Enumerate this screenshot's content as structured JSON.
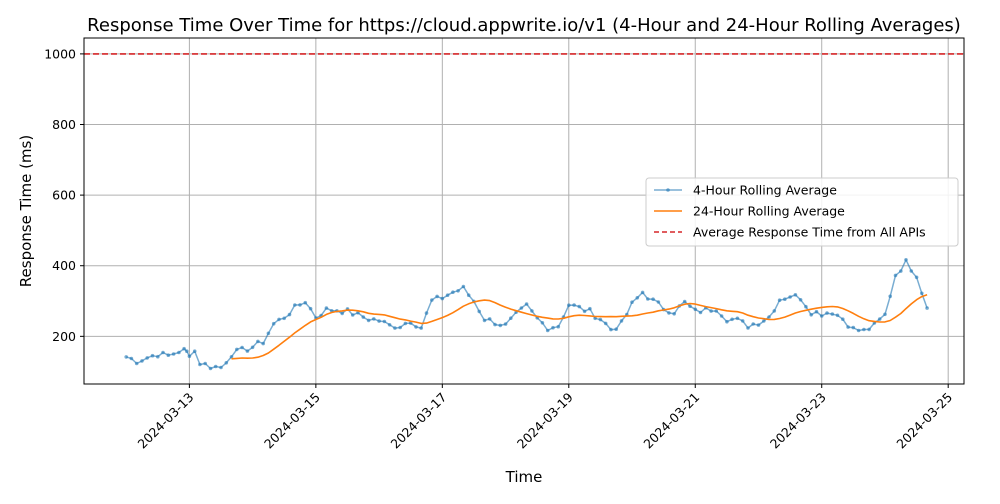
{
  "chart_data": {
    "type": "line",
    "title": "Response Time Over Time for https://cloud.appwrite.io/v1 (4-Hour and 24-Hour Rolling Averages)",
    "xlabel": "Time",
    "ylabel": "Response Time (ms)",
    "grid": true,
    "legend_position": "center-right",
    "xlim": [
      "2024-03-11T08:00",
      "2024-03-25T06:00"
    ],
    "ylim": [
      65,
      1045
    ],
    "x_ticks": [
      "2024-03-13",
      "2024-03-15",
      "2024-03-17",
      "2024-03-19",
      "2024-03-21",
      "2024-03-23",
      "2024-03-25"
    ],
    "y_ticks": [
      200,
      400,
      600,
      800,
      1000
    ],
    "reference_line": {
      "label": "Average Response Time from All APIs",
      "y": 1000,
      "color": "#d62728",
      "style": "dashed"
    },
    "series": [
      {
        "name": "4-Hour Rolling Average",
        "color": "#1f77b4",
        "alpha": 0.6,
        "marker": "dot",
        "points": [
          [
            "2024-03-12T00:00",
            142
          ],
          [
            "2024-03-12T04:00",
            130
          ],
          [
            "2024-03-12T08:00",
            140
          ],
          [
            "2024-03-12T12:00",
            150
          ],
          [
            "2024-03-12T16:00",
            145
          ],
          [
            "2024-03-12T20:00",
            158
          ],
          [
            "2024-03-13T00:00",
            162
          ],
          [
            "2024-03-12T22:00",
            160
          ],
          [
            "2024-03-13T02:00",
            158
          ],
          [
            "2024-03-12T23:00",
            155
          ],
          [
            "2024-03-13T00:00",
            140
          ],
          [
            "2024-03-13T04:00",
            125
          ],
          [
            "2024-03-13T08:00",
            115
          ],
          [
            "2024-03-13T12:00",
            112
          ],
          [
            "2024-03-13T16:00",
            150
          ],
          [
            "2024-03-13T20:00",
            160
          ],
          [
            "2024-03-14T00:00",
            170
          ],
          [
            "2024-03-14T04:00",
            185
          ],
          [
            "2024-03-14T08:00",
            235
          ],
          [
            "2024-03-14T12:00",
            255
          ],
          [
            "2024-03-14T16:00",
            280
          ],
          [
            "2024-03-14T20:00",
            300
          ],
          [
            "2024-03-15T00:00",
            255
          ],
          [
            "2024-03-15T04:00",
            275
          ],
          [
            "2024-03-15T08:00",
            275
          ],
          [
            "2024-03-15T12:00",
            270
          ],
          [
            "2024-03-15T16:00",
            260
          ],
          [
            "2024-03-15T20:00",
            250
          ],
          [
            "2024-03-16T00:00",
            245
          ],
          [
            "2024-03-16T04:00",
            230
          ],
          [
            "2024-03-16T08:00",
            230
          ],
          [
            "2024-03-16T12:00",
            245
          ],
          [
            "2024-03-16T16:00",
            225
          ],
          [
            "2024-03-16T20:00",
            300
          ],
          [
            "2024-03-17T00:00",
            310
          ],
          [
            "2024-03-17T04:00",
            325
          ],
          [
            "2024-03-17T08:00",
            335
          ],
          [
            "2024-03-17T12:00",
            300
          ],
          [
            "2024-03-17T16:00",
            250
          ],
          [
            "2024-03-17T20:00",
            240
          ],
          [
            "2024-03-18T00:00",
            230
          ],
          [
            "2024-03-18T04:00",
            260
          ],
          [
            "2024-03-18T08:00",
            285
          ],
          [
            "2024-03-18T12:00",
            250
          ],
          [
            "2024-03-18T16:00",
            225
          ],
          [
            "2024-03-18T20:00",
            230
          ],
          [
            "2024-03-19T00:00",
            290
          ],
          [
            "2024-03-19T04:00",
            280
          ],
          [
            "2024-03-19T08:00",
            270
          ],
          [
            "2024-03-19T12:00",
            250
          ],
          [
            "2024-03-19T16:00",
            220
          ],
          [
            "2024-03-19T20:00",
            235
          ],
          [
            "2024-03-20T00:00",
            290
          ],
          [
            "2024-03-20T04:00",
            325
          ],
          [
            "2024-03-20T08:00",
            300
          ],
          [
            "2024-03-20T12:00",
            280
          ],
          [
            "2024-03-20T16:00",
            270
          ],
          [
            "2024-03-20T20:00",
            295
          ],
          [
            "2024-03-21T00:00",
            270
          ],
          [
            "2024-03-21T04:00",
            275
          ],
          [
            "2024-03-21T08:00",
            280
          ],
          [
            "2024-03-21T12:00",
            250
          ],
          [
            "2024-03-21T16:00",
            245
          ],
          [
            "2024-03-21T20:00",
            230
          ],
          [
            "2024-03-22T00:00",
            240
          ],
          [
            "2024-03-22T04:00",
            255
          ],
          [
            "2024-03-22T08:00",
            305
          ],
          [
            "2024-03-22T12:00",
            315
          ],
          [
            "2024-03-22T16:00",
            310
          ],
          [
            "2024-03-22T20:00",
            270
          ],
          [
            "2024-03-23T00:00",
            265
          ],
          [
            "2024-03-23T04:00",
            270
          ],
          [
            "2024-03-23T08:00",
            250
          ],
          [
            "2024-03-23T12:00",
            220
          ],
          [
            "2024-03-23T16:00",
            215
          ],
          [
            "2024-03-23T20:00",
            230
          ],
          [
            "2024-03-24T00:00",
            260
          ],
          [
            "2024-03-24T04:00",
            375
          ],
          [
            "2024-03-24T08:00",
            410
          ],
          [
            "2024-03-24T12:00",
            375
          ],
          [
            "2024-03-24T16:00",
            280
          ]
        ]
      },
      {
        "name": "24-Hour Rolling Average",
        "color": "#ff7f0e",
        "points": []
      }
    ]
  }
}
